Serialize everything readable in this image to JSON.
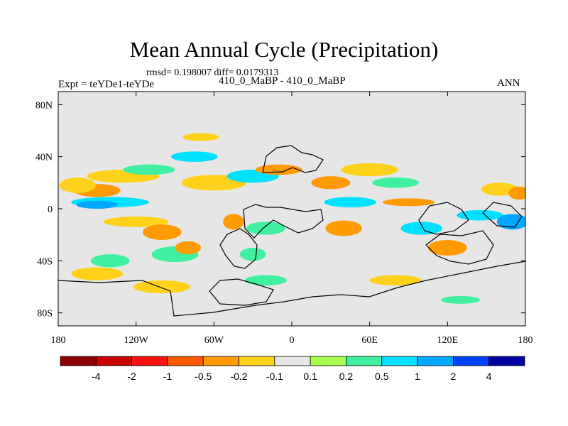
{
  "chart_data": {
    "type": "heatmap",
    "title": "Mean Annual Cycle (Precipitation)",
    "stats_text": "rmsd= 0.198007 diff= 0.0179313",
    "left_label": "Expt = teYDe1-teYDe",
    "center_label": "410_0_MaBP - 410_0_MaBP",
    "right_label": "ANN",
    "x_range": [
      -180,
      180
    ],
    "y_range": [
      -90,
      90
    ],
    "x_ticks": [
      {
        "value": -180,
        "label": "180"
      },
      {
        "value": -120,
        "label": "120W"
      },
      {
        "value": -60,
        "label": "60W"
      },
      {
        "value": 0,
        "label": "0"
      },
      {
        "value": 60,
        "label": "60E"
      },
      {
        "value": 120,
        "label": "120E"
      },
      {
        "value": 180,
        "label": "180"
      }
    ],
    "y_ticks": [
      {
        "value": 80,
        "label": "80N"
      },
      {
        "value": 40,
        "label": "40N"
      },
      {
        "value": 0,
        "label": "0"
      },
      {
        "value": -40,
        "label": "40S"
      },
      {
        "value": -80,
        "label": "80S"
      }
    ],
    "colorbar": {
      "colors": [
        "#8b0000",
        "#c80000",
        "#ff1010",
        "#ff5a00",
        "#ff9a00",
        "#ffd11a",
        "#e6e6e6",
        "#a8ff50",
        "#40f0a0",
        "#00e0ff",
        "#00a8ff",
        "#0040ff",
        "#0000a0"
      ],
      "labels": [
        "-4",
        "-2",
        "-1",
        "-0.5",
        "-0.2",
        "-0.1",
        "0.1",
        "0.2",
        "0.5",
        "1",
        "2",
        "4"
      ]
    },
    "anomaly_blobs": [
      {
        "lon": -150,
        "lat": 14,
        "rx": 18,
        "ry": 5,
        "level": -0.5
      },
      {
        "lon": -165,
        "lat": 18,
        "rx": 14,
        "ry": 6,
        "level": -0.2
      },
      {
        "lon": -140,
        "lat": 5,
        "rx": 30,
        "ry": 4,
        "level": 0.5
      },
      {
        "lon": -150,
        "lat": 3,
        "rx": 16,
        "ry": 3,
        "level": 1
      },
      {
        "lon": -120,
        "lat": -10,
        "rx": 25,
        "ry": 4,
        "level": -0.2
      },
      {
        "lon": -100,
        "lat": -18,
        "rx": 15,
        "ry": 6,
        "level": -0.5
      },
      {
        "lon": -130,
        "lat": 25,
        "rx": 28,
        "ry": 5,
        "level": -0.2
      },
      {
        "lon": -110,
        "lat": 30,
        "rx": 20,
        "ry": 4,
        "level": 0.2
      },
      {
        "lon": -60,
        "lat": 20,
        "rx": 25,
        "ry": 6,
        "level": -0.2
      },
      {
        "lon": -75,
        "lat": 40,
        "rx": 18,
        "ry": 4,
        "level": 0.5
      },
      {
        "lon": -70,
        "lat": 55,
        "rx": 14,
        "ry": 3,
        "level": -0.2
      },
      {
        "lon": -140,
        "lat": -40,
        "rx": 15,
        "ry": 5,
        "level": 0.2
      },
      {
        "lon": -150,
        "lat": -50,
        "rx": 20,
        "ry": 5,
        "level": -0.2
      },
      {
        "lon": -90,
        "lat": -35,
        "rx": 18,
        "ry": 6,
        "level": 0.2
      },
      {
        "lon": -80,
        "lat": -30,
        "rx": 10,
        "ry": 5,
        "level": -0.5
      },
      {
        "lon": -30,
        "lat": 25,
        "rx": 20,
        "ry": 5,
        "level": 0.5
      },
      {
        "lon": -10,
        "lat": 30,
        "rx": 18,
        "ry": 4,
        "level": -0.5
      },
      {
        "lon": -20,
        "lat": -15,
        "rx": 15,
        "ry": 5,
        "level": 0.2
      },
      {
        "lon": -45,
        "lat": -10,
        "rx": 8,
        "ry": 6,
        "level": -0.5
      },
      {
        "lon": -30,
        "lat": -35,
        "rx": 10,
        "ry": 5,
        "level": 0.2
      },
      {
        "lon": 30,
        "lat": 20,
        "rx": 15,
        "ry": 5,
        "level": -0.5
      },
      {
        "lon": 45,
        "lat": 5,
        "rx": 20,
        "ry": 4,
        "level": 0.5
      },
      {
        "lon": 40,
        "lat": -15,
        "rx": 14,
        "ry": 6,
        "level": -0.5
      },
      {
        "lon": 60,
        "lat": 30,
        "rx": 22,
        "ry": 5,
        "level": -0.2
      },
      {
        "lon": 80,
        "lat": 20,
        "rx": 18,
        "ry": 4,
        "level": 0.2
      },
      {
        "lon": 90,
        "lat": 5,
        "rx": 20,
        "ry": 3,
        "level": -0.5
      },
      {
        "lon": 100,
        "lat": -15,
        "rx": 16,
        "ry": 5,
        "level": 0.5
      },
      {
        "lon": 120,
        "lat": -30,
        "rx": 15,
        "ry": 6,
        "level": -0.5
      },
      {
        "lon": 145,
        "lat": -5,
        "rx": 18,
        "ry": 4,
        "level": 0.5
      },
      {
        "lon": 160,
        "lat": 15,
        "rx": 14,
        "ry": 5,
        "level": -0.2
      },
      {
        "lon": 170,
        "lat": -10,
        "rx": 12,
        "ry": 6,
        "level": 1
      },
      {
        "lon": 175,
        "lat": 12,
        "rx": 8,
        "ry": 5,
        "level": -0.5
      },
      {
        "lon": -100,
        "lat": -60,
        "rx": 22,
        "ry": 5,
        "level": -0.2
      },
      {
        "lon": 80,
        "lat": -55,
        "rx": 20,
        "ry": 4,
        "level": -0.2
      },
      {
        "lon": 130,
        "lat": -70,
        "rx": 15,
        "ry": 3,
        "level": 0.2
      },
      {
        "lon": -20,
        "lat": -55,
        "rx": 16,
        "ry": 4,
        "level": 0.2
      }
    ]
  }
}
